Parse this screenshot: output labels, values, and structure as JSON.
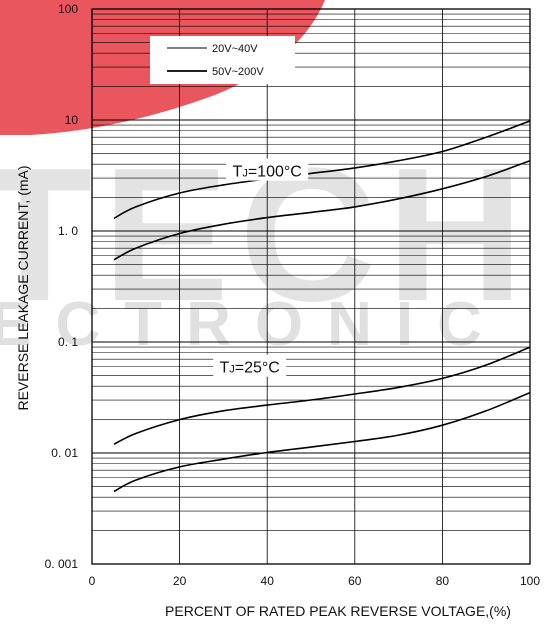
{
  "watermark": {
    "text_top": "TECH",
    "text_bottom": "ECTRONIC",
    "colors": {
      "red": "#e8444b",
      "gray": "#c8c8c8"
    }
  },
  "chart_data": {
    "type": "line",
    "xlabel": "PERCENT OF RATED PEAK REVERSE VOLTAGE,(%)",
    "ylabel": "REVERSE LEAKAGE CURRENT, (mA)",
    "xlim": [
      0,
      100
    ],
    "ylim": [
      0.001,
      100
    ],
    "yscale": "log",
    "grid": true,
    "x_ticks": [
      0,
      20,
      40,
      60,
      80,
      100
    ],
    "x_tick_labels": [
      "0",
      "20",
      "40",
      "60",
      "80",
      "100"
    ],
    "y_ticks": [
      0.001,
      0.01,
      0.1,
      1,
      10,
      100
    ],
    "y_tick_labels": [
      "0. 001",
      "0. 01",
      "0. 1",
      "1. 0",
      "10",
      "100"
    ],
    "legend": {
      "placement": "top-left",
      "entries": [
        {
          "label": "20V~40V",
          "style": "thin"
        },
        {
          "label": "50V~200V",
          "style": "thick"
        }
      ]
    },
    "annotations": [
      {
        "text": "TJ=100°C",
        "main": "T",
        "sub": "J",
        "rest": "=100°C",
        "x": 40,
        "y": 3.5
      },
      {
        "text": "TJ=25°C",
        "main": "T",
        "sub": "J",
        "rest": "=25°C",
        "x": 36,
        "y": 0.06
      }
    ],
    "series": [
      {
        "group": "TJ=100°C upper",
        "x": [
          5,
          10,
          20,
          30,
          40,
          50,
          60,
          70,
          80,
          90,
          100
        ],
        "y": [
          1.3,
          1.65,
          2.2,
          2.6,
          2.95,
          3.3,
          3.7,
          4.3,
          5.2,
          7.0,
          9.8
        ]
      },
      {
        "group": "TJ=100°C lower",
        "x": [
          5,
          10,
          20,
          30,
          40,
          50,
          60,
          70,
          80,
          90,
          100
        ],
        "y": [
          0.55,
          0.7,
          0.95,
          1.15,
          1.32,
          1.47,
          1.65,
          1.95,
          2.4,
          3.1,
          4.3
        ]
      },
      {
        "group": "TJ=25°C upper",
        "x": [
          5,
          10,
          20,
          30,
          40,
          50,
          60,
          70,
          80,
          90,
          100
        ],
        "y": [
          0.012,
          0.015,
          0.02,
          0.024,
          0.027,
          0.03,
          0.034,
          0.039,
          0.047,
          0.062,
          0.09
        ]
      },
      {
        "group": "TJ=25°C lower",
        "x": [
          5,
          10,
          20,
          30,
          40,
          50,
          60,
          70,
          80,
          90,
          100
        ],
        "y": [
          0.0045,
          0.0057,
          0.0075,
          0.0088,
          0.0101,
          0.0113,
          0.0127,
          0.0145,
          0.0178,
          0.024,
          0.035
        ]
      }
    ]
  }
}
